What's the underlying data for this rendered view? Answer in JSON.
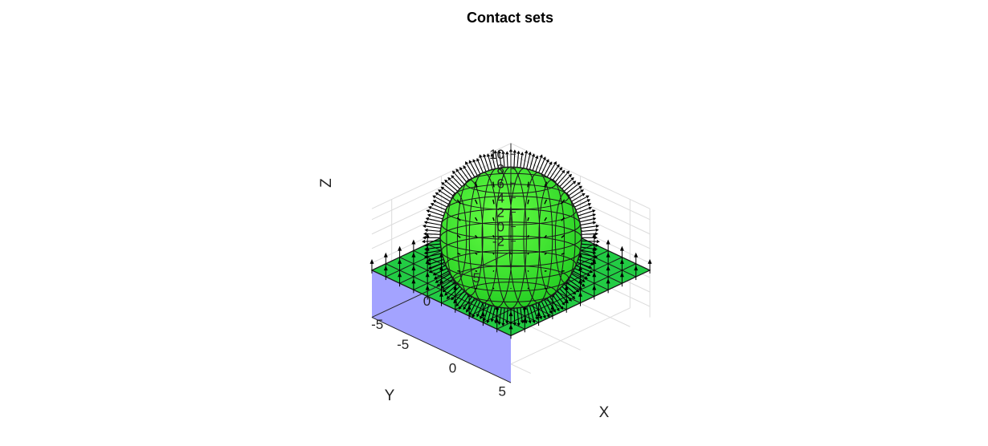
{
  "chart_data": {
    "type": "3d-surface",
    "title": "Contact sets",
    "xlabel": "X",
    "ylabel": "Y",
    "zlabel": "Z",
    "x_ticks": [
      "-5",
      "0",
      "5"
    ],
    "y_ticks": [
      "-5",
      "0",
      "5"
    ],
    "z_ticks": [
      "-2",
      "0",
      "2",
      "4",
      "6",
      "8",
      "10"
    ],
    "xlim": [
      -7,
      7
    ],
    "ylim": [
      -7,
      7
    ],
    "zlim": [
      -3.5,
      11.5
    ],
    "grid": true,
    "objects": [
      {
        "name": "ground block",
        "type": "box",
        "x": [
          -7,
          7
        ],
        "y": [
          -7,
          7
        ],
        "z": [
          -3.5,
          3
        ],
        "color": "#a3a3ff"
      },
      {
        "name": "contact plane",
        "type": "plane",
        "z": 3,
        "grid_divisions": 10,
        "color": "#22cc44"
      },
      {
        "name": "sphere",
        "type": "sphere",
        "center": [
          0,
          0,
          7.5
        ],
        "radius": 4.5,
        "color": "#33ee33"
      }
    ],
    "annotations": "contact normal vectors drawn as black arrows on the plane grid nodes and on the sphere surface"
  },
  "colors": {
    "block": "#a3a3ff",
    "plane": "#22cc44",
    "sphere": "#33ee33",
    "mesh_line": "#1a1a1a",
    "arrow": "#000000",
    "grid": "#dcdcdc"
  }
}
